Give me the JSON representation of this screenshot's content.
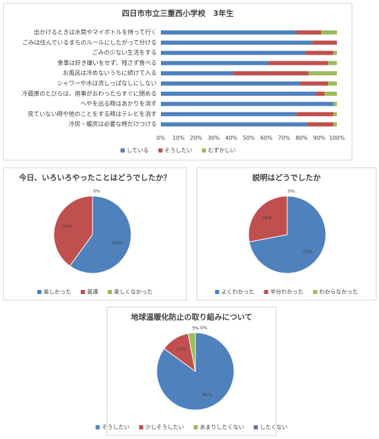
{
  "chart_data": [
    {
      "type": "bar",
      "orientation": "horizontal",
      "stacked": true,
      "title": "四日市市立三重西小学校　3年生",
      "categories": [
        "出かけるときは水筒やマイボトルを持って行く",
        "ごみは住んでいるまちのルールにしたがって分ける",
        "ごみの少ない生活をする",
        "食事は好き嫌いをせず、残さず食べる",
        "お風呂は冷めないうちに続けて入る",
        "シャワーや水は流しっぱなしにしない",
        "冷蔵庫のとびらは、用事がおわったらすぐに閉める",
        "へやを出る時はあかりを消す",
        "見ていない時や他のことをする時はテレビを消す",
        "冷房・暖房は必要な時だけつける"
      ],
      "series": [
        {
          "name": "している",
          "color": "#4f81bd",
          "values": [
            77,
            86,
            82,
            61,
            41,
            79,
            88,
            98,
            77,
            83
          ]
        },
        {
          "name": "そうしたい",
          "color": "#c0504d",
          "values": [
            14,
            14,
            16,
            34,
            43,
            16,
            5,
            0,
            21,
            15
          ]
        },
        {
          "name": "むずかしい",
          "color": "#9bbb59",
          "values": [
            9,
            0,
            2,
            5,
            16,
            5,
            7,
            2,
            2,
            2
          ]
        }
      ],
      "xlim": [
        0,
        100
      ],
      "xticks": [
        {
          "value": 0,
          "label": "0%"
        },
        {
          "value": 10,
          "label": "10%"
        },
        {
          "value": 20,
          "label": "20%"
        },
        {
          "value": 30,
          "label": "30%"
        },
        {
          "value": 40,
          "label": "40%"
        },
        {
          "value": 50,
          "label": "50%"
        },
        {
          "value": 60,
          "label": "60%"
        },
        {
          "value": 70,
          "label": "70%"
        },
        {
          "value": 80,
          "label": "80%"
        },
        {
          "value": 90,
          "label": "90%"
        },
        {
          "value": 100,
          "label": "100%"
        }
      ],
      "grid": false,
      "legend": "bottom"
    },
    {
      "type": "pie",
      "title": "今日、いろいろやったことはどうでしたか？",
      "categories": [
        "楽しかった",
        "普通",
        "楽しくなかった"
      ],
      "values": [
        60,
        40,
        0
      ],
      "value_labels": [
        "60%",
        "40%",
        "0%"
      ],
      "colors": [
        "#4f81bd",
        "#c0504d",
        "#9bbb59"
      ],
      "legend": "bottom"
    },
    {
      "type": "pie",
      "title": "説明はどうでしたか",
      "categories": [
        "よくわかった",
        "半分わかった",
        "わからなかった"
      ],
      "values": [
        72,
        28,
        0
      ],
      "value_labels": [
        "72%",
        "28%",
        "0%"
      ],
      "colors": [
        "#4f81bd",
        "#c0504d",
        "#9bbb59"
      ],
      "legend": "bottom"
    },
    {
      "type": "pie",
      "title": "地球温暖化防止の取り組みについて",
      "categories": [
        "そうしたい",
        "少しそうしたい",
        "あまりしたくない",
        "したくない"
      ],
      "values": [
        85,
        12,
        3,
        0
      ],
      "value_labels": [
        "85%",
        "12%",
        "3%",
        "0%"
      ],
      "colors": [
        "#4f81bd",
        "#c0504d",
        "#9bbb59",
        "#8064a2"
      ],
      "legend": "bottom"
    }
  ]
}
